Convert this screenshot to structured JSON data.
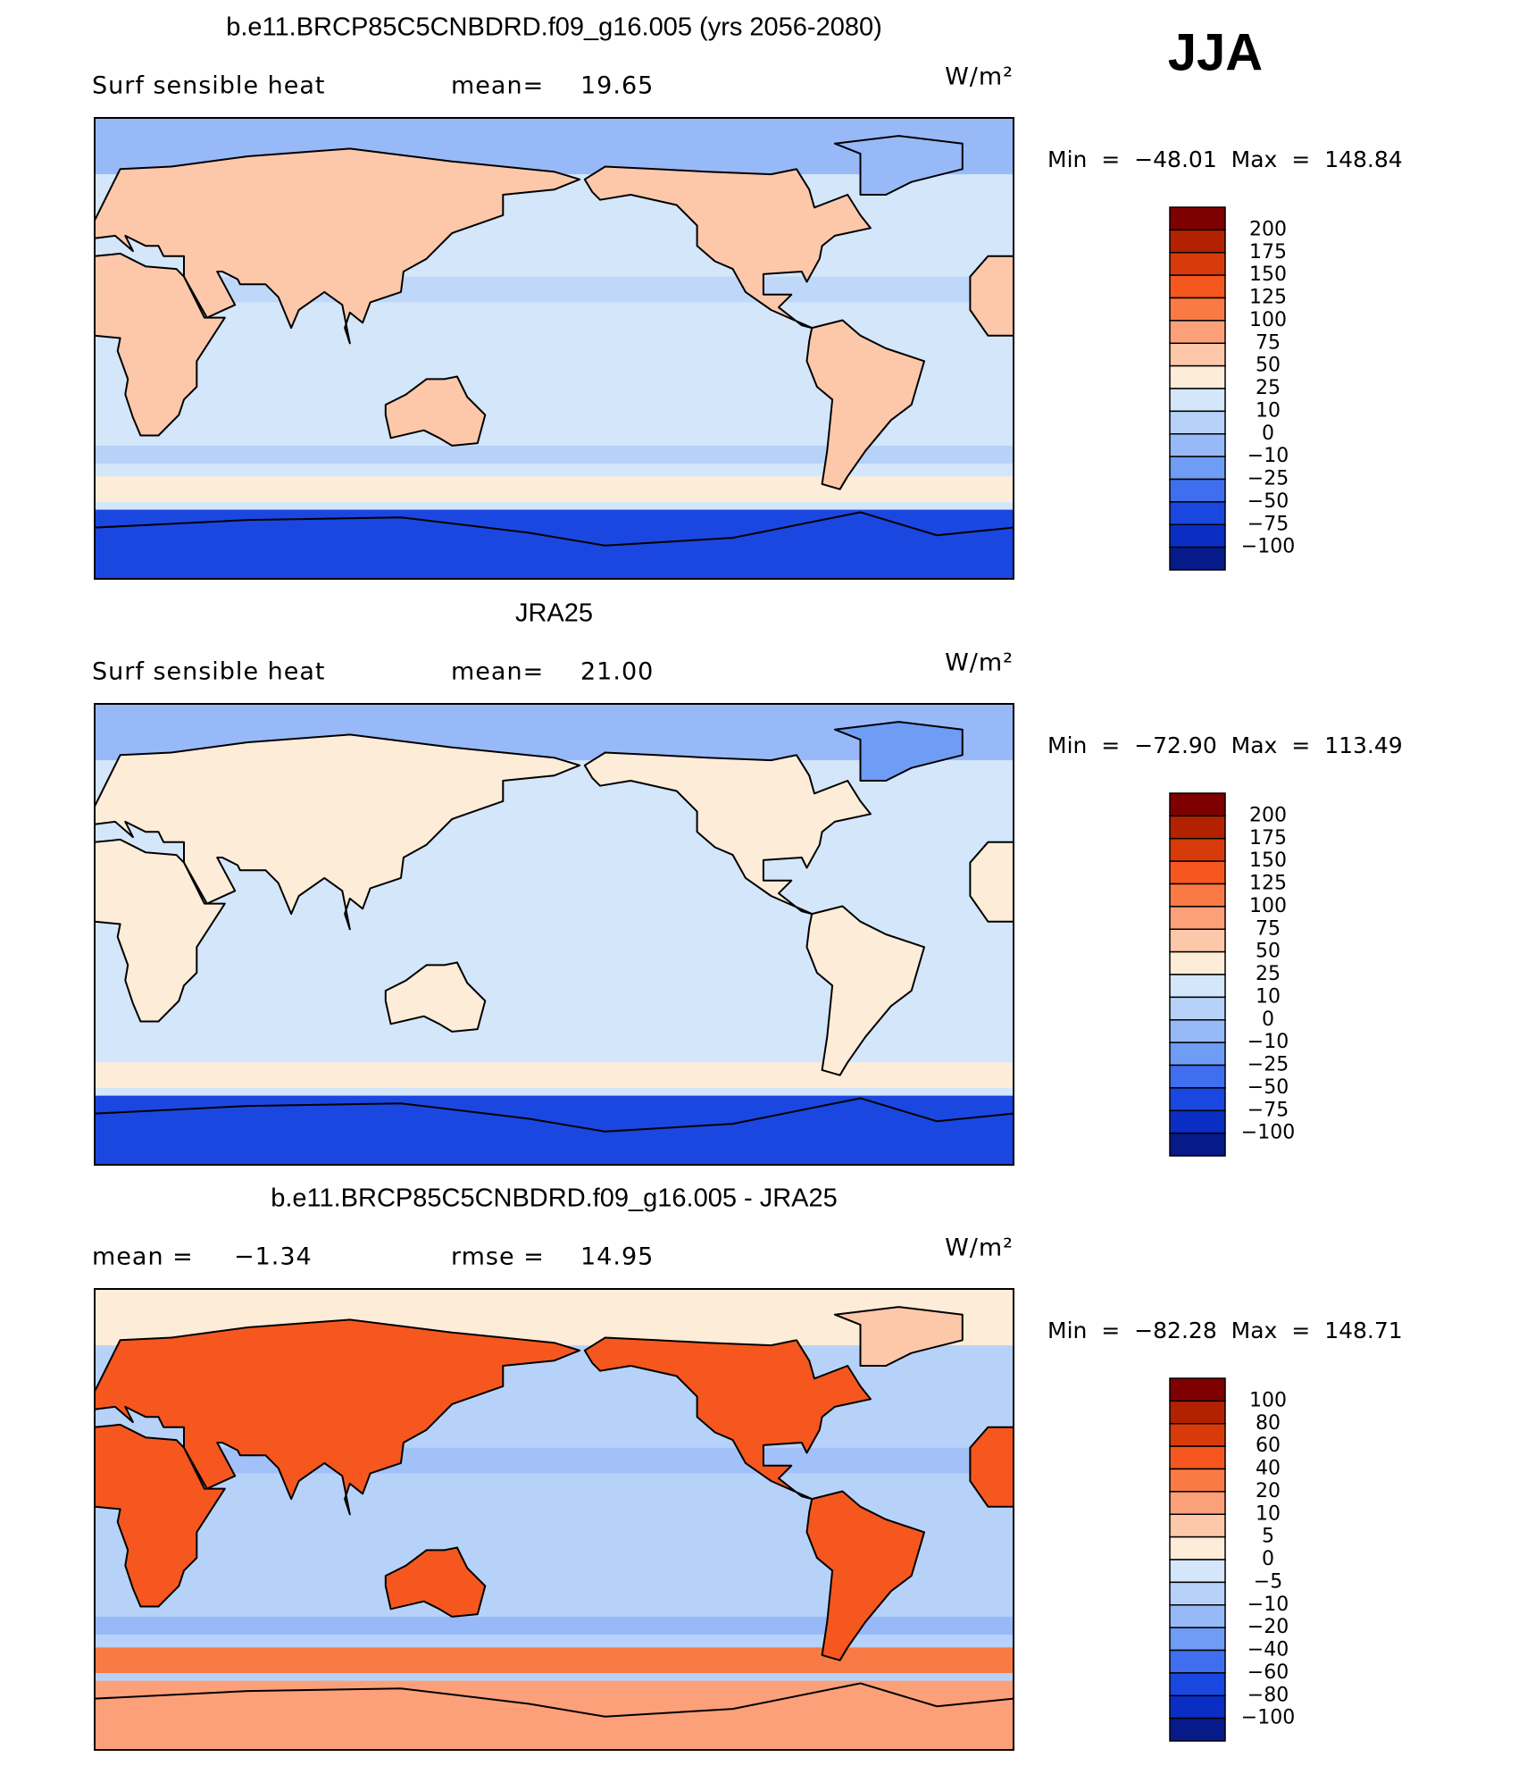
{
  "season": "JJA",
  "panels": [
    {
      "title": "b.e11.BRCP85C5CNBDRD.f09_g16.005 (yrs 2056-2080)",
      "left_label": "Surf sensible heat",
      "center_label": "mean=",
      "center_value": "19.65",
      "units": "W/m²",
      "stats": "Min = −48.01 Max = 148.84",
      "colorbar": {
        "labels": [
          "200",
          "175",
          "150",
          "125",
          "100",
          "75",
          "50",
          "25",
          "10",
          "0",
          "−10",
          "−25",
          "−50",
          "−75",
          "−100"
        ],
        "colors": [
          "#7f0000",
          "#b22200",
          "#d83a0a",
          "#f5571f",
          "#fa7a45",
          "#fca07a",
          "#fdc8aa",
          "#fdecd7",
          "#d4e6fa",
          "#b7d2f8",
          "#98b9f8",
          "#6f9cf5",
          "#3f6fee",
          "#1a47e0",
          "#0a2dc4",
          "#061a8a"
        ]
      }
    },
    {
      "title": "JRA25",
      "left_label": "Surf sensible heat",
      "center_label": "mean=",
      "center_value": "21.00",
      "units": "W/m²",
      "stats": "Min = −72.90 Max = 113.49",
      "colorbar": {
        "labels": [
          "200",
          "175",
          "150",
          "125",
          "100",
          "75",
          "50",
          "25",
          "10",
          "0",
          "−10",
          "−25",
          "−50",
          "−75",
          "−100"
        ],
        "colors": [
          "#7f0000",
          "#b22200",
          "#d83a0a",
          "#f5571f",
          "#fa7a45",
          "#fca07a",
          "#fdc8aa",
          "#fdecd7",
          "#d4e6fa",
          "#b7d2f8",
          "#98b9f8",
          "#6f9cf5",
          "#3f6fee",
          "#1a47e0",
          "#0a2dc4",
          "#061a8a"
        ]
      }
    },
    {
      "title": "b.e11.BRCP85C5CNBDRD.f09_g16.005 - JRA25",
      "left_label": "mean =",
      "left_value": "−1.34",
      "center_label": "rmse =",
      "center_value": "14.95",
      "units": "W/m²",
      "stats": "Min = −82.28 Max = 148.71",
      "colorbar": {
        "labels": [
          "100",
          "80",
          "60",
          "40",
          "20",
          "10",
          "5",
          "0",
          "−5",
          "−10",
          "−20",
          "−40",
          "−60",
          "−80",
          "−100"
        ],
        "colors": [
          "#7f0000",
          "#b22200",
          "#d83a0a",
          "#f5571f",
          "#fa7a45",
          "#fca07a",
          "#fdc8aa",
          "#fdecd7",
          "#d4e6fa",
          "#b7d2f8",
          "#98b9f8",
          "#6f9cf5",
          "#3f6fee",
          "#1a47e0",
          "#0a2dc4",
          "#061a8a"
        ]
      }
    }
  ]
}
